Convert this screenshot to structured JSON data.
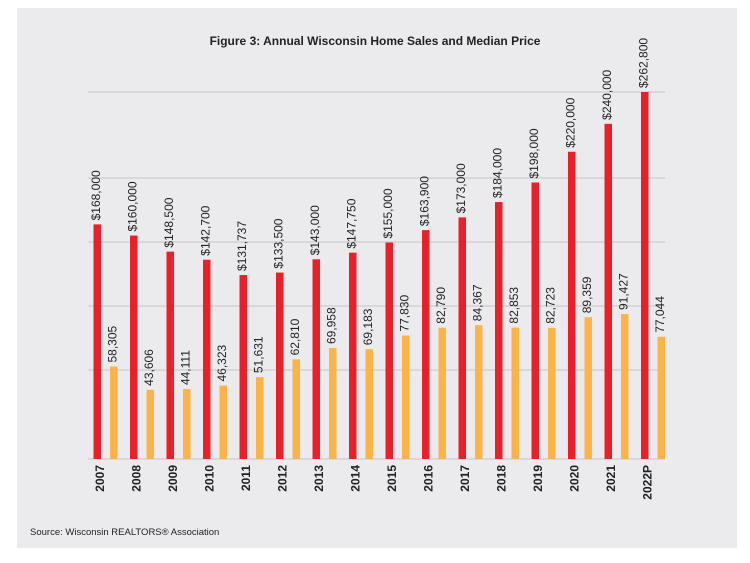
{
  "chart_data": {
    "type": "bar",
    "title": "Figure 3: Annual Wisconsin Home Sales and Median Price",
    "source": "Source: Wisconsin REALTORS® Association",
    "categories": [
      "2007",
      "2008",
      "2009",
      "2010",
      "2011",
      "2012",
      "2013",
      "2014",
      "2015",
      "2016",
      "2017",
      "2018",
      "2019",
      "2020",
      "2021",
      "2022P"
    ],
    "series": [
      {
        "name": "",
        "color": "#e8202a",
        "values": [
          168000,
          160000,
          148500,
          142700,
          131737,
          133500,
          143000,
          147750,
          155000,
          163900,
          173000,
          184000,
          198000,
          220000,
          240000,
          262800
        ],
        "labels": [
          "$168,000",
          "$160,000",
          "$148,500",
          "$142,700",
          "$131,737",
          "$133,500",
          "$143,000",
          "$147,750",
          "$155,000",
          "$163,900",
          "$173,000",
          "$184,000",
          "$198,000",
          "$220,000",
          "$240,000",
          "$262,800"
        ]
      },
      {
        "name": "",
        "color": "#fdb347",
        "values": [
          58305,
          43606,
          44111,
          46323,
          51631,
          62810,
          69958,
          69183,
          77830,
          82790,
          84367,
          82853,
          82723,
          89359,
          91427,
          77044
        ],
        "labels": [
          "58,305",
          "43,606",
          "44,111",
          "46,323",
          "51,631",
          "62,810",
          "69,958",
          "69,183",
          "77,830",
          "82,790",
          "84,367",
          "82,853",
          "82,723",
          "89,359",
          "91,427",
          "77,044"
        ]
      }
    ],
    "grid": true,
    "legend": "none"
  }
}
